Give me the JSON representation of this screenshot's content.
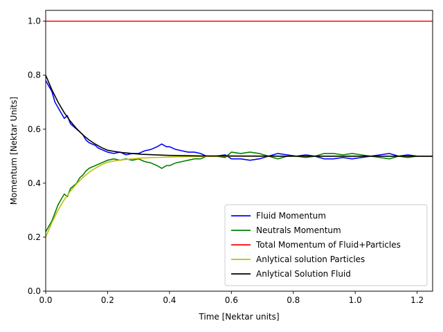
{
  "chart_data": {
    "type": "line",
    "title": "",
    "xlabel": "Time [Nektar units]",
    "ylabel": "Momentum [Nektar Units]",
    "xlim": [
      0,
      1.25
    ],
    "ylim": [
      0,
      1.04
    ],
    "xticks": [
      0,
      0.2,
      0.4,
      0.6,
      0.8,
      1.0,
      1.2
    ],
    "xtick_labels": [
      "0.0",
      "0.2",
      "0.4",
      "0.6",
      "0.8",
      "1.0",
      "1.2"
    ],
    "yticks": [
      0,
      0.2,
      0.4,
      0.6,
      0.8,
      1.0
    ],
    "ytick_labels": [
      "0.0",
      "0.2",
      "0.4",
      "0.6",
      "0.8",
      "1.0"
    ],
    "grid": false,
    "legend_position": "lower-right",
    "series": [
      {
        "name": "Fluid Momentum",
        "color": "#0000ff",
        "x": [
          0.0,
          0.01,
          0.02,
          0.03,
          0.04,
          0.05,
          0.06,
          0.07,
          0.08,
          0.09,
          0.1,
          0.11,
          0.12,
          0.13,
          0.14,
          0.15,
          0.16,
          0.17,
          0.18,
          0.19,
          0.2,
          0.22,
          0.24,
          0.26,
          0.28,
          0.3,
          0.32,
          0.34,
          0.36,
          0.375,
          0.39,
          0.4,
          0.42,
          0.44,
          0.46,
          0.48,
          0.5,
          0.52,
          0.55,
          0.58,
          0.6,
          0.63,
          0.66,
          0.69,
          0.72,
          0.75,
          0.78,
          0.81,
          0.84,
          0.87,
          0.9,
          0.93,
          0.96,
          0.99,
          1.02,
          1.05,
          1.08,
          1.11,
          1.14,
          1.17,
          1.2,
          1.23,
          1.25
        ],
        "y": [
          0.78,
          0.76,
          0.74,
          0.7,
          0.68,
          0.66,
          0.64,
          0.65,
          0.62,
          0.61,
          0.6,
          0.59,
          0.58,
          0.56,
          0.55,
          0.545,
          0.54,
          0.53,
          0.525,
          0.52,
          0.515,
          0.51,
          0.515,
          0.505,
          0.51,
          0.51,
          0.52,
          0.525,
          0.535,
          0.545,
          0.535,
          0.535,
          0.525,
          0.52,
          0.515,
          0.515,
          0.51,
          0.5,
          0.5,
          0.505,
          0.49,
          0.49,
          0.485,
          0.49,
          0.5,
          0.51,
          0.505,
          0.5,
          0.505,
          0.5,
          0.49,
          0.49,
          0.495,
          0.49,
          0.495,
          0.5,
          0.505,
          0.51,
          0.5,
          0.505,
          0.5,
          0.5,
          0.5
        ]
      },
      {
        "name": "Neutrals Momentum",
        "color": "#008000",
        "x": [
          0.0,
          0.01,
          0.02,
          0.03,
          0.04,
          0.05,
          0.06,
          0.07,
          0.08,
          0.09,
          0.1,
          0.11,
          0.12,
          0.13,
          0.14,
          0.15,
          0.16,
          0.17,
          0.18,
          0.19,
          0.2,
          0.22,
          0.24,
          0.26,
          0.28,
          0.3,
          0.32,
          0.34,
          0.36,
          0.375,
          0.39,
          0.4,
          0.42,
          0.44,
          0.46,
          0.48,
          0.5,
          0.52,
          0.55,
          0.58,
          0.6,
          0.63,
          0.66,
          0.69,
          0.72,
          0.75,
          0.78,
          0.81,
          0.84,
          0.87,
          0.9,
          0.93,
          0.96,
          0.99,
          1.02,
          1.05,
          1.08,
          1.11,
          1.14,
          1.17,
          1.2,
          1.23,
          1.25
        ],
        "y": [
          0.22,
          0.24,
          0.26,
          0.29,
          0.32,
          0.34,
          0.36,
          0.35,
          0.38,
          0.39,
          0.4,
          0.42,
          0.43,
          0.445,
          0.455,
          0.46,
          0.465,
          0.47,
          0.475,
          0.48,
          0.485,
          0.49,
          0.485,
          0.49,
          0.485,
          0.49,
          0.48,
          0.475,
          0.465,
          0.455,
          0.465,
          0.465,
          0.475,
          0.48,
          0.485,
          0.49,
          0.49,
          0.5,
          0.5,
          0.495,
          0.515,
          0.51,
          0.515,
          0.51,
          0.5,
          0.49,
          0.5,
          0.5,
          0.495,
          0.5,
          0.51,
          0.51,
          0.505,
          0.51,
          0.505,
          0.5,
          0.495,
          0.49,
          0.5,
          0.495,
          0.5,
          0.5,
          0.5
        ]
      },
      {
        "name": "Total Momentum of Fluid+Particles",
        "color": "#ff0000",
        "x": [
          0.0,
          1.25
        ],
        "y": [
          1.0,
          1.0
        ]
      },
      {
        "name": "Anlytical solution Particles",
        "color": "#bfbf00",
        "x": [
          0.0,
          0.02,
          0.04,
          0.06,
          0.08,
          0.1,
          0.12,
          0.14,
          0.16,
          0.18,
          0.2,
          0.22,
          0.25,
          0.28,
          0.31,
          0.35,
          0.4,
          0.45,
          0.5,
          0.6,
          0.7,
          0.8,
          0.9,
          1.0,
          1.1,
          1.25
        ],
        "y": [
          0.2,
          0.254,
          0.3,
          0.339,
          0.371,
          0.398,
          0.421,
          0.44,
          0.455,
          0.468,
          0.478,
          0.482,
          0.487,
          0.49,
          0.493,
          0.495,
          0.497,
          0.498,
          0.499,
          0.4995,
          0.4998,
          0.4999,
          0.5,
          0.5,
          0.5,
          0.5
        ]
      },
      {
        "name": "Anlytical Solution Fluid",
        "color": "#000000",
        "x": [
          0.0,
          0.02,
          0.04,
          0.06,
          0.08,
          0.1,
          0.12,
          0.14,
          0.16,
          0.18,
          0.2,
          0.22,
          0.25,
          0.28,
          0.31,
          0.35,
          0.4,
          0.45,
          0.5,
          0.6,
          0.7,
          0.8,
          0.9,
          1.0,
          1.1,
          1.25
        ],
        "y": [
          0.8,
          0.746,
          0.7,
          0.661,
          0.629,
          0.602,
          0.579,
          0.56,
          0.545,
          0.532,
          0.522,
          0.518,
          0.513,
          0.51,
          0.507,
          0.505,
          0.503,
          0.502,
          0.501,
          0.5005,
          0.5002,
          0.5001,
          0.5,
          0.5,
          0.5,
          0.5
        ]
      }
    ]
  }
}
